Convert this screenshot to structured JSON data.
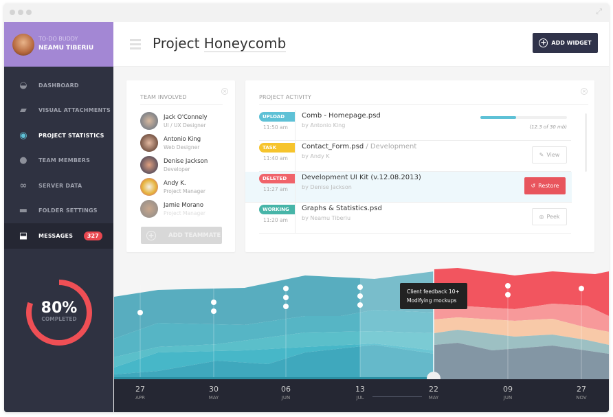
{
  "window": {
    "expand_icon": "expand-icon"
  },
  "profile": {
    "subtitle": "TO-DO BUDDY",
    "name": "NEAMU TIBERIU"
  },
  "sidebar": {
    "items": [
      {
        "label": "DASHBOARD",
        "icon": "◒"
      },
      {
        "label": "VISUAL ATTACHMENTS",
        "icon": "▰"
      },
      {
        "label": "PROJECT STATISTICS",
        "icon": "◉"
      },
      {
        "label": "TEAM MEMBERS",
        "icon": "●"
      },
      {
        "label": "SERVER DATA",
        "icon": "∞"
      },
      {
        "label": "FOLDER SETTINGS",
        "icon": "▬"
      },
      {
        "label": "MESSAGES",
        "icon": "⬓",
        "badge": "327"
      }
    ]
  },
  "progress": {
    "value": "80%",
    "label": "COMPLETED",
    "fraction": 0.8,
    "color": "#ef4f55"
  },
  "header": {
    "title_a": "Project ",
    "title_b": "Honeycomb",
    "add_widget": "ADD WIDGET"
  },
  "team": {
    "title": "TEAM INVOLVED",
    "add_label": "ADD TEAMMATE",
    "members": [
      {
        "name": "Jack O'Connely",
        "role": "UI / UX Designer"
      },
      {
        "name": "Antonio King",
        "role": "Web Designer"
      },
      {
        "name": "Denise Jackson",
        "role": "Developer"
      },
      {
        "name": "Andy K.",
        "role": "Project Manager"
      },
      {
        "name": "Jamie Morano",
        "role": "Project Manager"
      }
    ]
  },
  "activity": {
    "title": "PROJECT ACTIVITY",
    "items": [
      {
        "tag": "UPLOAD",
        "color": "#5ec1d6",
        "time": "11:50 am",
        "file": "Comb - Homepage.psd",
        "by": "by Antonio King",
        "progress": 0.41,
        "size": "(12.3 of 30 mb)"
      },
      {
        "tag": "TASK",
        "color": "#f6c42d",
        "time": "11:40 am",
        "file": "Contact_Form.psd",
        "folder": " / Development",
        "by": "by Andy K",
        "action": "View"
      },
      {
        "tag": "DELETED",
        "color": "#f0636a",
        "time": "11:27 am",
        "file": "Development UI Kit (v.12.08.2013)",
        "by": "by Denise Jackson",
        "action": "Restore"
      },
      {
        "tag": "WORKING",
        "color": "#47b5a8",
        "time": "11:20 am",
        "file": "Graphs & Statistics.psd",
        "by": "by Neamu Tiberiu",
        "action": "Peek"
      }
    ]
  },
  "timeline": {
    "dates": [
      {
        "d": "27",
        "m": "APR"
      },
      {
        "d": "30",
        "m": "MAY"
      },
      {
        "d": "06",
        "m": "JUN"
      },
      {
        "d": "13",
        "m": "JUL"
      },
      {
        "d": "22",
        "m": "MAY"
      },
      {
        "d": "09",
        "m": "JUN"
      },
      {
        "d": "27",
        "m": "NOV"
      }
    ],
    "markers_per_date": [
      1,
      2,
      3,
      3,
      0,
      2,
      1
    ],
    "tooltip": {
      "line1": "Client feedback 10+",
      "line2": "Modifying mockups"
    },
    "past_colors": [
      "#58adbf",
      "#56b5c5",
      "#5bbfca",
      "#47b7c8",
      "#3fa8bd"
    ],
    "future_colors": [
      "#f2555f",
      "#f7999a",
      "#f8c9a8",
      "#9dc0c3",
      "#8396a4"
    ]
  }
}
